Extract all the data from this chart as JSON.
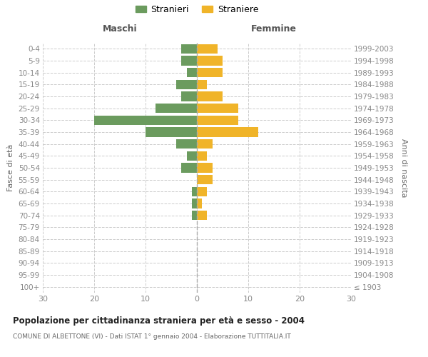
{
  "age_groups": [
    "100+",
    "95-99",
    "90-94",
    "85-89",
    "80-84",
    "75-79",
    "70-74",
    "65-69",
    "60-64",
    "55-59",
    "50-54",
    "45-49",
    "40-44",
    "35-39",
    "30-34",
    "25-29",
    "20-24",
    "15-19",
    "10-14",
    "5-9",
    "0-4"
  ],
  "birth_years": [
    "≤ 1903",
    "1904-1908",
    "1909-1913",
    "1914-1918",
    "1919-1923",
    "1924-1928",
    "1929-1933",
    "1934-1938",
    "1939-1943",
    "1944-1948",
    "1949-1953",
    "1954-1958",
    "1959-1963",
    "1964-1968",
    "1969-1973",
    "1974-1978",
    "1979-1983",
    "1984-1988",
    "1989-1993",
    "1994-1998",
    "1999-2003"
  ],
  "maschi": [
    0,
    0,
    0,
    0,
    0,
    0,
    1,
    1,
    1,
    0,
    3,
    2,
    4,
    10,
    20,
    8,
    3,
    4,
    2,
    3,
    3
  ],
  "femmine": [
    0,
    0,
    0,
    0,
    0,
    0,
    2,
    1,
    2,
    3,
    3,
    2,
    3,
    12,
    8,
    8,
    5,
    2,
    5,
    5,
    4
  ],
  "color_maschi": "#6b9b5e",
  "color_femmine": "#f0b429",
  "xlim": 30,
  "title": "Popolazione per cittadinanza straniera per età e sesso - 2004",
  "subtitle": "COMUNE DI ALBETTONE (VI) - Dati ISTAT 1° gennaio 2004 - Elaborazione TUTTITALIA.IT",
  "ylabel_left": "Fasce di età",
  "ylabel_right": "Anni di nascita",
  "legend_maschi": "Stranieri",
  "legend_femmine": "Straniere",
  "header_maschi": "Maschi",
  "header_femmine": "Femmine",
  "bg_color": "#ffffff",
  "grid_color": "#cccccc",
  "tick_color": "#888888",
  "bar_height": 0.8
}
